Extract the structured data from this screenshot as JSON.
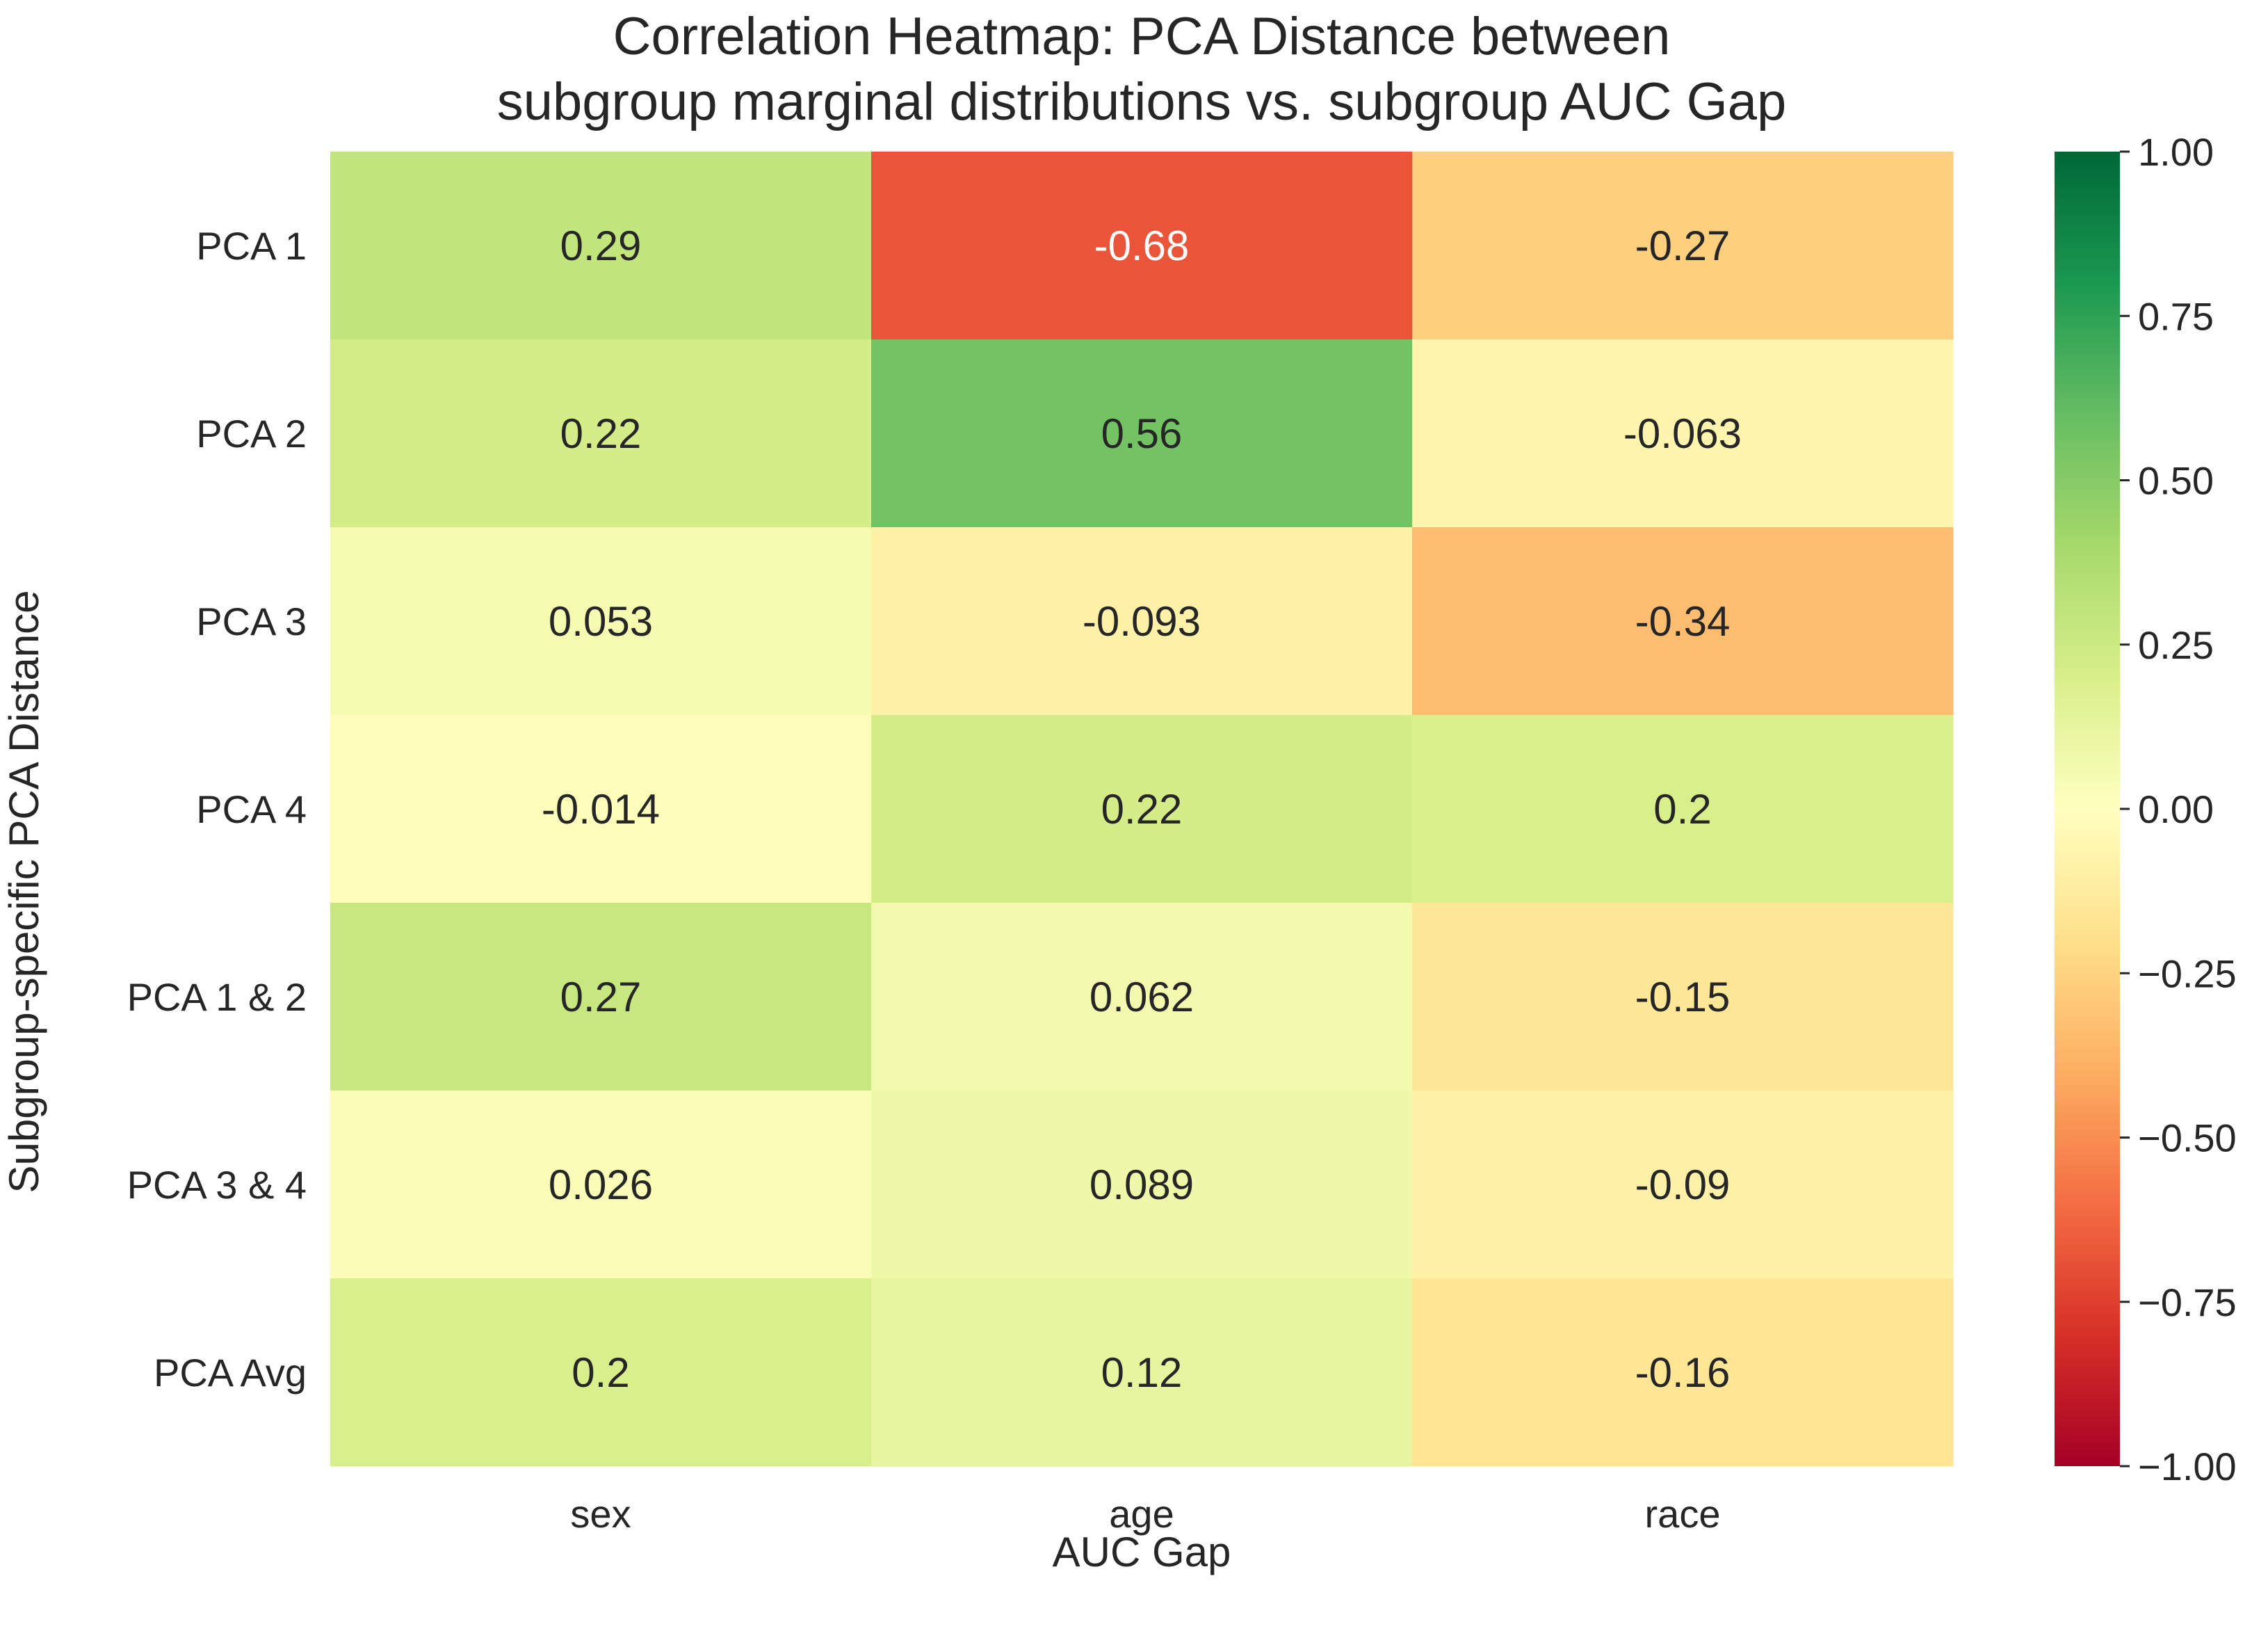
{
  "chart_data": {
    "type": "heatmap",
    "title": [
      "Correlation Heatmap: PCA Distance between",
      "subgroup marginal distributions vs. subgroup AUC Gap"
    ],
    "xlabel": "AUC Gap",
    "ylabel": "Subgroup-specific PCA Distance",
    "columns": [
      "sex",
      "age",
      "race"
    ],
    "rows": [
      "PCA 1",
      "PCA 2",
      "PCA 3",
      "PCA 4",
      "PCA 1 & 2",
      "PCA 3 & 4",
      "PCA Avg"
    ],
    "values": [
      [
        0.29,
        -0.68,
        -0.27
      ],
      [
        0.22,
        0.56,
        -0.063
      ],
      [
        0.053,
        -0.093,
        -0.34
      ],
      [
        -0.014,
        0.22,
        0.2
      ],
      [
        0.27,
        0.062,
        -0.15
      ],
      [
        0.026,
        0.089,
        -0.09
      ],
      [
        0.2,
        0.12,
        -0.16
      ]
    ],
    "cell_labels": [
      [
        "0.29",
        "-0.68",
        "-0.27"
      ],
      [
        "0.22",
        "0.56",
        "-0.063"
      ],
      [
        "0.053",
        "-0.093",
        "-0.34"
      ],
      [
        "-0.014",
        "0.22",
        "0.2"
      ],
      [
        "0.27",
        "0.062",
        "-0.15"
      ],
      [
        "0.026",
        "0.089",
        "-0.09"
      ],
      [
        "0.2",
        "0.12",
        "-0.16"
      ]
    ],
    "colormap": "RdYlGn",
    "vmin": -1.0,
    "vmax": 1.0,
    "colorbar_ticks": [
      "1.00",
      "0.75",
      "0.50",
      "0.25",
      "0.00",
      "−0.25",
      "−0.50",
      "−0.75",
      "−1.00"
    ],
    "colorbar_tick_values": [
      1.0,
      0.75,
      0.5,
      0.25,
      0.0,
      -0.25,
      -0.5,
      -0.75,
      -1.0
    ],
    "colors": {
      "stops": [
        "#a50026",
        "#d73027",
        "#f46d43",
        "#fdae61",
        "#fee08b",
        "#ffffbf",
        "#d9ef8b",
        "#a6d96a",
        "#66bd63",
        "#1a9850",
        "#006837"
      ],
      "text_dark": "#262626",
      "text_light": "#ffffff"
    }
  }
}
